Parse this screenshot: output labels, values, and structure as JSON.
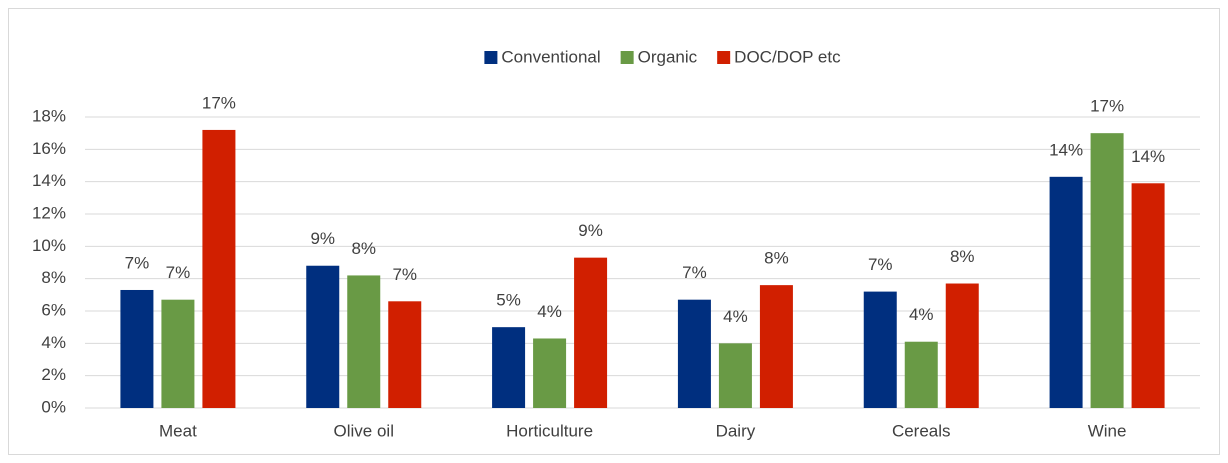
{
  "chart_data": {
    "type": "bar",
    "categories": [
      "Meat",
      "Olive oil",
      "Horticulture",
      "Dairy",
      "Cereals",
      "Wine"
    ],
    "series": [
      {
        "name": "Conventional",
        "color": "#002f7f",
        "values": [
          7.3,
          8.8,
          5.0,
          6.7,
          7.2,
          14.3
        ],
        "value_labels": [
          "7%",
          "9%",
          "5%",
          "7%",
          "7%",
          "14%"
        ]
      },
      {
        "name": "Organic",
        "color": "#699a45",
        "values": [
          6.7,
          8.2,
          4.3,
          4.0,
          4.1,
          17.0
        ],
        "value_labels": [
          "7%",
          "8%",
          "4%",
          "4%",
          "4%",
          "17%"
        ]
      },
      {
        "name": "DOC/DOP etc",
        "color": "#d11f00",
        "values": [
          17.2,
          6.6,
          9.3,
          7.6,
          7.7,
          13.9
        ],
        "value_labels": [
          "17%",
          "7%",
          "9%",
          "8%",
          "8%",
          "14%"
        ]
      }
    ],
    "ylim": [
      0,
      18
    ],
    "yticks": [
      {
        "value": 0,
        "label": "0%"
      },
      {
        "value": 2,
        "label": "2%"
      },
      {
        "value": 4,
        "label": "4%"
      },
      {
        "value": 6,
        "label": "6%"
      },
      {
        "value": 8,
        "label": "8%"
      },
      {
        "value": 10,
        "label": "10%"
      },
      {
        "value": 12,
        "label": "12%"
      },
      {
        "value": 14,
        "label": "14%"
      },
      {
        "value": 16,
        "label": "16%"
      },
      {
        "value": 18,
        "label": "18%"
      }
    ],
    "grid": true,
    "legend": "top"
  }
}
